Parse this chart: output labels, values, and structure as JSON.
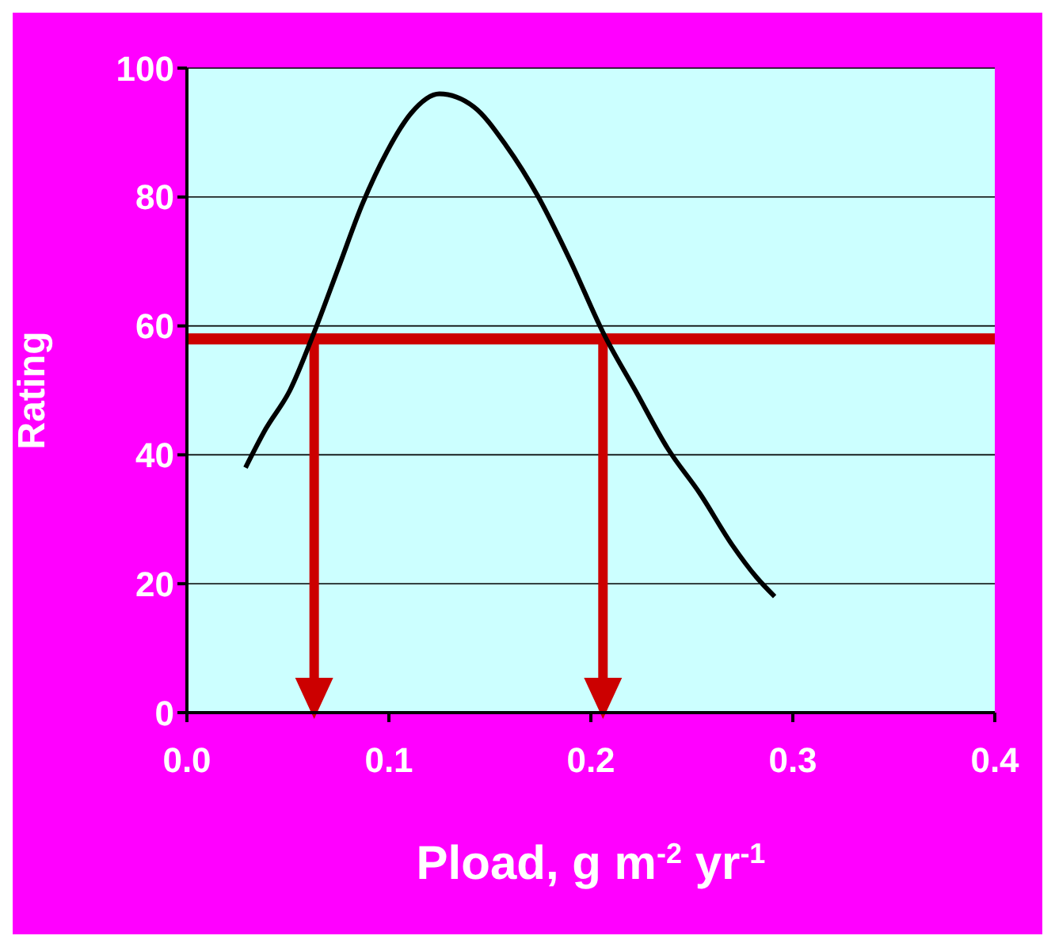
{
  "chart_data": {
    "type": "line",
    "xlabel": "Pload, g m$^{-2}$ yr$^{-1}$",
    "ylabel": "Rating",
    "x": [
      0.029,
      0.039,
      0.051,
      0.063,
      0.075,
      0.087,
      0.099,
      0.111,
      0.125,
      0.142,
      0.158,
      0.174,
      0.19,
      0.206,
      0.222,
      0.238,
      0.254,
      0.27,
      0.282,
      0.291
    ],
    "series": [
      {
        "color": "#000000",
        "values": [
          38,
          44,
          50,
          59,
          69,
          79,
          87,
          93,
          96,
          94,
          88,
          80,
          70,
          59,
          50,
          41,
          34,
          26,
          21,
          18
        ]
      }
    ],
    "xlim": [
      0,
      0.4
    ],
    "xticks": [
      {
        "value": 0,
        "label": "0.0"
      },
      0.1,
      0.2,
      0.3,
      0.4
    ],
    "ylim": [
      0,
      100
    ],
    "yticks": [
      0,
      20,
      40,
      60,
      80,
      100
    ],
    "grid": "y",
    "marker": "none",
    "line_style": "solid",
    "ref_lines": [
      {
        "axis": "y",
        "value": 58,
        "color": "#cc0000"
      },
      {
        "axis": "x",
        "value": 0.063,
        "color": "#cc0000"
      },
      {
        "axis": "x",
        "value": 0.206,
        "color": "#cc0000"
      }
    ]
  }
}
